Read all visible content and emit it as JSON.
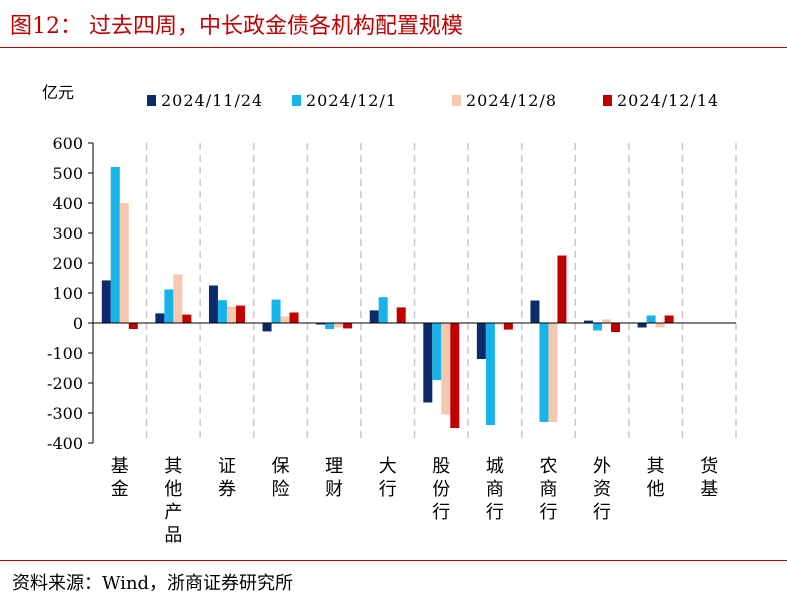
{
  "header": {
    "title": "图12：  过去四周，中长政金债各机构配置规模"
  },
  "footer": {
    "source": "资料来源：Wind，浙商证券研究所"
  },
  "chart_data": {
    "type": "bar",
    "unit_label": "亿元",
    "ylim": [
      -400,
      600
    ],
    "yticks": [
      600,
      500,
      400,
      300,
      200,
      100,
      0,
      -100,
      -200,
      -300,
      -400
    ],
    "legend_position": "top",
    "categories": [
      "基金",
      "其他产品",
      "证券",
      "保险",
      "理财",
      "大行",
      "股份行",
      "城商行",
      "农商行",
      "外资行",
      "其他",
      "货基"
    ],
    "series": [
      {
        "name": "2024/11/24",
        "color": "#0b2b6b",
        "values": [
          142,
          32,
          125,
          -28,
          -5,
          42,
          -265,
          -120,
          75,
          8,
          -15,
          0
        ]
      },
      {
        "name": "2024/12/1",
        "color": "#18b3e8",
        "values": [
          520,
          112,
          76,
          78,
          -20,
          86,
          -190,
          -340,
          -330,
          -25,
          25,
          0
        ]
      },
      {
        "name": "2024/12/8",
        "color": "#f6c8ad",
        "values": [
          400,
          162,
          55,
          22,
          -15,
          2,
          -305,
          -5,
          -330,
          12,
          -15,
          0
        ]
      },
      {
        "name": "2024/12/14",
        "color": "#c00000",
        "values": [
          -20,
          28,
          58,
          35,
          -18,
          52,
          -350,
          -22,
          225,
          -30,
          25,
          0
        ]
      }
    ]
  }
}
